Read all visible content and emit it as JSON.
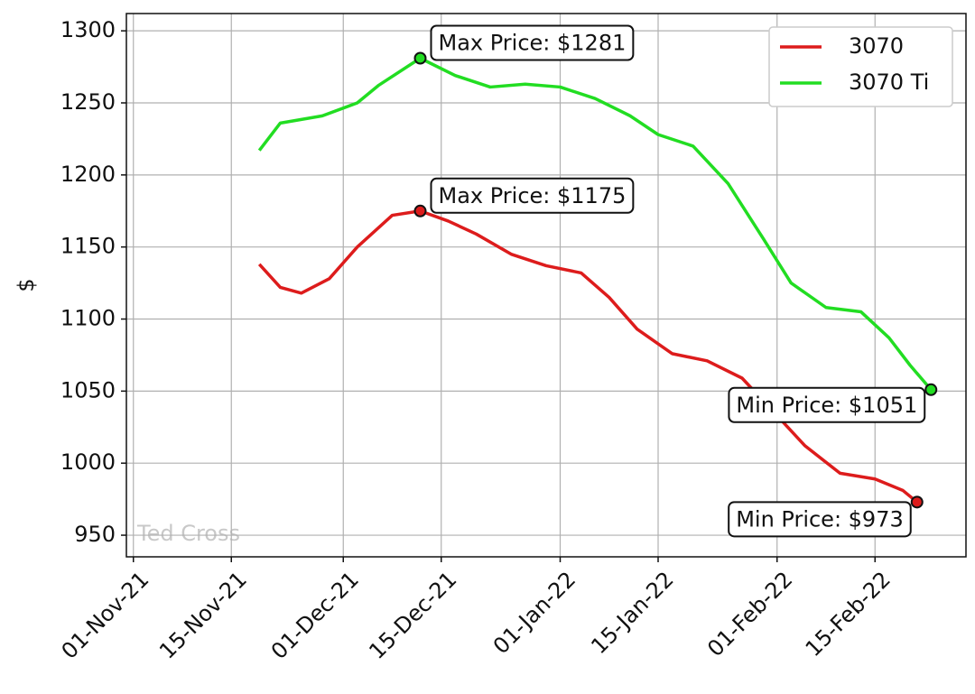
{
  "chart_data": {
    "type": "line",
    "ylabel": "$",
    "watermark": "Ted Cross",
    "xlim": [
      "2021-10-31",
      "2022-02-28"
    ],
    "xticks": [
      {
        "value": "2021-11-01",
        "label": "01-Nov-21"
      },
      {
        "value": "2021-11-15",
        "label": "15-Nov-21"
      },
      {
        "value": "2021-12-01",
        "label": "01-Dec-21"
      },
      {
        "value": "2021-12-15",
        "label": "15-Dec-21"
      },
      {
        "value": "2022-01-01",
        "label": "01-Jan-22"
      },
      {
        "value": "2022-01-15",
        "label": "15-Jan-22"
      },
      {
        "value": "2022-02-01",
        "label": "01-Feb-22"
      },
      {
        "value": "2022-02-15",
        "label": "15-Feb-22"
      }
    ],
    "ylim": [
      935,
      1312
    ],
    "yticks": [
      950,
      1000,
      1050,
      1100,
      1150,
      1200,
      1250,
      1300
    ],
    "grid": true,
    "legend": "upper right",
    "series": [
      {
        "name": "3070",
        "color": "#dd1c1c",
        "x": [
          "2021-11-19",
          "2021-11-22",
          "2021-11-25",
          "2021-11-29",
          "2021-12-03",
          "2021-12-08",
          "2021-12-12",
          "2021-12-16",
          "2021-12-20",
          "2021-12-25",
          "2021-12-30",
          "2022-01-04",
          "2022-01-08",
          "2022-01-12",
          "2022-01-17",
          "2022-01-22",
          "2022-01-27",
          "2022-02-01",
          "2022-02-05",
          "2022-02-10",
          "2022-02-15",
          "2022-02-19",
          "2022-02-21"
        ],
        "values": [
          1138,
          1122,
          1118,
          1128,
          1150,
          1172,
          1175,
          1168,
          1159,
          1145,
          1137,
          1132,
          1115,
          1093,
          1076,
          1071,
          1059,
          1033,
          1012,
          993,
          989,
          981,
          973
        ]
      },
      {
        "name": "3070 Ti",
        "color": "#22dd22",
        "x": [
          "2021-11-19",
          "2021-11-22",
          "2021-11-28",
          "2021-12-03",
          "2021-12-06",
          "2021-12-12",
          "2021-12-17",
          "2021-12-22",
          "2021-12-27",
          "2022-01-01",
          "2022-01-06",
          "2022-01-11",
          "2022-01-15",
          "2022-01-20",
          "2022-01-25",
          "2022-01-30",
          "2022-02-03",
          "2022-02-08",
          "2022-02-13",
          "2022-02-17",
          "2022-02-20",
          "2022-02-23"
        ],
        "values": [
          1217,
          1236,
          1241,
          1250,
          1262,
          1281,
          1269,
          1261,
          1263,
          1261,
          1253,
          1241,
          1228,
          1220,
          1194,
          1156,
          1125,
          1108,
          1105,
          1087,
          1068,
          1051
        ]
      }
    ],
    "annotations": [
      {
        "text": "Max Price: $1281",
        "x": "2021-12-12",
        "y": 1281
      },
      {
        "text": "Max Price: $1175",
        "x": "2021-12-12",
        "y": 1175
      },
      {
        "text": "Min Price: $1051",
        "x": "2022-02-23",
        "y": 1051
      },
      {
        "text": "Min Price: $973",
        "x": "2022-02-21",
        "y": 973
      }
    ]
  }
}
